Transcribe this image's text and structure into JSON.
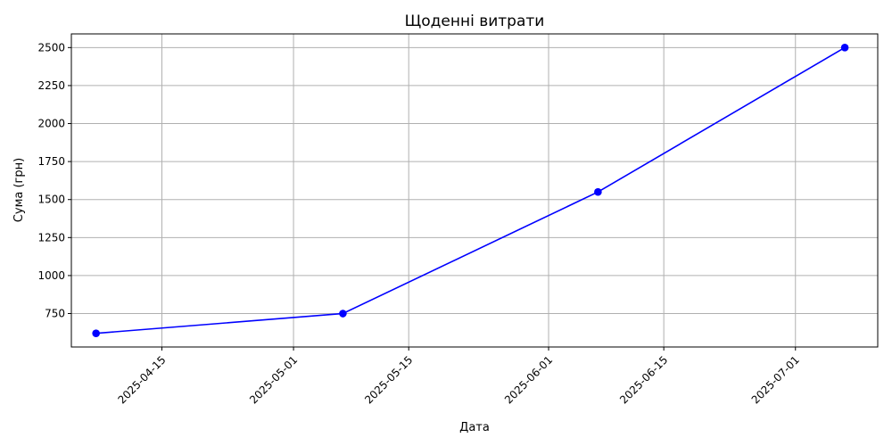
{
  "chart_data": {
    "type": "line",
    "title": "Щоденні витрати",
    "xlabel": "Дата",
    "ylabel": "Сума (грн)",
    "x_ticks": [
      "2025-04-15",
      "2025-05-01",
      "2025-05-15",
      "2025-06-01",
      "2025-06-15",
      "2025-07-01"
    ],
    "y_ticks": [
      750,
      1000,
      1250,
      1500,
      1750,
      2000,
      2250,
      2500
    ],
    "xlim": [
      "2025-04-04",
      "2025-07-11"
    ],
    "ylim": [
      530,
      2590
    ],
    "grid": true,
    "series": [
      {
        "color": "#0000ff",
        "marker": "circle",
        "x": [
          "2025-04-07",
          "2025-05-07",
          "2025-06-07",
          "2025-07-07"
        ],
        "y": [
          620,
          750,
          1550,
          2500
        ]
      }
    ]
  }
}
